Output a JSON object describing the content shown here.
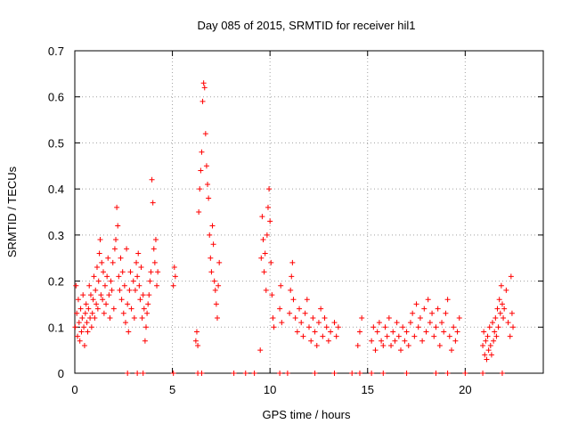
{
  "chart_data": {
    "type": "scatter",
    "title": "Day 085 of 2015, SRMTID for receiver hil1",
    "xlabel": "GPS time / hours",
    "ylabel": "SRMTID / TECUs",
    "xlim": [
      0,
      24
    ],
    "ylim": [
      0,
      0.7
    ],
    "x_ticks": [
      0,
      5,
      10,
      15,
      20
    ],
    "x_tick_labels": [
      "0",
      "5",
      "10",
      "15",
      "20"
    ],
    "y_ticks": [
      0,
      0.1,
      0.2,
      0.3,
      0.4,
      0.5,
      0.6,
      0.7
    ],
    "y_tick_labels": [
      "0",
      "0.1",
      "0.2",
      "0.3",
      "0.4",
      "0.5",
      "0.6",
      "0.7"
    ],
    "grid": true,
    "marker": "+",
    "color": "#ff0000",
    "series": [
      {
        "name": "SRMTID",
        "points": [
          [
            0.02,
            0.1
          ],
          [
            0.06,
            0.19
          ],
          [
            0.1,
            0.13
          ],
          [
            0.14,
            0.08
          ],
          [
            0.18,
            0.16
          ],
          [
            0.22,
            0.11
          ],
          [
            0.26,
            0.07
          ],
          [
            0.3,
            0.14
          ],
          [
            0.34,
            0.09
          ],
          [
            0.38,
            0.12
          ],
          [
            0.42,
            0.17
          ],
          [
            0.46,
            0.1
          ],
          [
            0.5,
            0.06
          ],
          [
            0.54,
            0.13
          ],
          [
            0.58,
            0.15
          ],
          [
            0.62,
            0.11
          ],
          [
            0.66,
            0.09
          ],
          [
            0.7,
            0.14
          ],
          [
            0.74,
            0.19
          ],
          [
            0.78,
            0.12
          ],
          [
            0.82,
            0.17
          ],
          [
            0.86,
            0.1
          ],
          [
            0.9,
            0.13
          ],
          [
            0.94,
            0.16
          ],
          [
            0.98,
            0.21
          ],
          [
            1.02,
            0.12
          ],
          [
            1.06,
            0.18
          ],
          [
            1.1,
            0.15
          ],
          [
            1.14,
            0.23
          ],
          [
            1.18,
            0.14
          ],
          [
            1.22,
            0.2
          ],
          [
            1.26,
            0.26
          ],
          [
            1.3,
            0.29
          ],
          [
            1.34,
            0.17
          ],
          [
            1.38,
            0.24
          ],
          [
            1.42,
            0.16
          ],
          [
            1.46,
            0.22
          ],
          [
            1.5,
            0.13
          ],
          [
            1.55,
            0.19
          ],
          [
            1.6,
            0.15
          ],
          [
            1.65,
            0.21
          ],
          [
            1.7,
            0.25
          ],
          [
            1.75,
            0.17
          ],
          [
            1.8,
            0.12
          ],
          [
            1.85,
            0.2
          ],
          [
            1.9,
            0.18
          ],
          [
            1.95,
            0.24
          ],
          [
            2.0,
            0.14
          ],
          [
            2.05,
            0.27
          ],
          [
            2.1,
            0.29
          ],
          [
            2.15,
            0.36
          ],
          [
            2.2,
            0.32
          ],
          [
            2.25,
            0.21
          ],
          [
            2.3,
            0.18
          ],
          [
            2.35,
            0.25
          ],
          [
            2.4,
            0.16
          ],
          [
            2.45,
            0.22
          ],
          [
            2.5,
            0.13
          ],
          [
            2.55,
            0.19
          ],
          [
            2.6,
            0.11
          ],
          [
            2.65,
            0.27
          ],
          [
            2.7,
            0.15
          ],
          [
            2.75,
            0.09
          ],
          [
            2.8,
            0.18
          ],
          [
            2.85,
            0.22
          ],
          [
            2.9,
            0.14
          ],
          [
            3.0,
            0.2
          ],
          [
            3.05,
            0.12
          ],
          [
            3.1,
            0.18
          ],
          [
            3.15,
            0.24
          ],
          [
            3.2,
            0.21
          ],
          [
            3.25,
            0.26
          ],
          [
            3.3,
            0.19
          ],
          [
            3.35,
            0.16
          ],
          [
            3.4,
            0.23
          ],
          [
            3.45,
            0.12
          ],
          [
            3.5,
            0.17
          ],
          [
            3.55,
            0.14
          ],
          [
            3.6,
            0.07
          ],
          [
            3.65,
            0.1
          ],
          [
            3.7,
            0.13
          ],
          [
            3.75,
            0.15
          ],
          [
            3.8,
            0.17
          ],
          [
            3.85,
            0.2
          ],
          [
            3.9,
            0.22
          ],
          [
            3.95,
            0.42
          ],
          [
            4.0,
            0.37
          ],
          [
            4.05,
            0.27
          ],
          [
            4.1,
            0.24
          ],
          [
            4.15,
            0.29
          ],
          [
            4.2,
            0.19
          ],
          [
            4.25,
            0.22
          ],
          [
            5.05,
            0.19
          ],
          [
            5.1,
            0.23
          ],
          [
            5.15,
            0.21
          ],
          [
            6.2,
            0.07
          ],
          [
            6.25,
            0.09
          ],
          [
            6.3,
            0.06
          ],
          [
            6.35,
            0.35
          ],
          [
            6.4,
            0.4
          ],
          [
            6.45,
            0.44
          ],
          [
            6.5,
            0.48
          ],
          [
            6.55,
            0.59
          ],
          [
            6.6,
            0.63
          ],
          [
            6.65,
            0.62
          ],
          [
            6.7,
            0.52
          ],
          [
            6.75,
            0.45
          ],
          [
            6.8,
            0.41
          ],
          [
            6.85,
            0.38
          ],
          [
            6.9,
            0.3
          ],
          [
            6.95,
            0.25
          ],
          [
            7.0,
            0.22
          ],
          [
            7.05,
            0.32
          ],
          [
            7.1,
            0.28
          ],
          [
            7.15,
            0.2
          ],
          [
            7.2,
            0.18
          ],
          [
            7.25,
            0.15
          ],
          [
            7.3,
            0.12
          ],
          [
            7.35,
            0.19
          ],
          [
            7.4,
            0.24
          ],
          [
            9.5,
            0.05
          ],
          [
            9.55,
            0.25
          ],
          [
            9.6,
            0.34
          ],
          [
            9.65,
            0.29
          ],
          [
            9.7,
            0.22
          ],
          [
            9.75,
            0.26
          ],
          [
            9.8,
            0.18
          ],
          [
            9.85,
            0.3
          ],
          [
            9.9,
            0.36
          ],
          [
            9.95,
            0.4
          ],
          [
            10.0,
            0.33
          ],
          [
            10.05,
            0.24
          ],
          [
            10.1,
            0.17
          ],
          [
            10.15,
            0.12
          ],
          [
            10.2,
            0.1
          ],
          [
            10.5,
            0.14
          ],
          [
            10.55,
            0.19
          ],
          [
            10.6,
            0.11
          ],
          [
            11.0,
            0.13
          ],
          [
            11.05,
            0.18
          ],
          [
            11.1,
            0.21
          ],
          [
            11.15,
            0.24
          ],
          [
            11.2,
            0.16
          ],
          [
            11.3,
            0.12
          ],
          [
            11.4,
            0.09
          ],
          [
            11.5,
            0.14
          ],
          [
            11.6,
            0.11
          ],
          [
            11.7,
            0.08
          ],
          [
            11.8,
            0.13
          ],
          [
            11.9,
            0.16
          ],
          [
            12.0,
            0.1
          ],
          [
            12.1,
            0.07
          ],
          [
            12.2,
            0.12
          ],
          [
            12.3,
            0.09
          ],
          [
            12.4,
            0.06
          ],
          [
            12.5,
            0.11
          ],
          [
            12.6,
            0.14
          ],
          [
            12.7,
            0.08
          ],
          [
            12.8,
            0.12
          ],
          [
            12.9,
            0.1
          ],
          [
            13.0,
            0.07
          ],
          [
            13.1,
            0.09
          ],
          [
            13.3,
            0.11
          ],
          [
            13.4,
            0.08
          ],
          [
            13.5,
            0.1
          ],
          [
            14.5,
            0.06
          ],
          [
            14.6,
            0.09
          ],
          [
            14.7,
            0.12
          ],
          [
            15.2,
            0.07
          ],
          [
            15.3,
            0.1
          ],
          [
            15.4,
            0.05
          ],
          [
            15.5,
            0.09
          ],
          [
            15.6,
            0.11
          ],
          [
            15.7,
            0.07
          ],
          [
            15.8,
            0.06
          ],
          [
            15.9,
            0.1
          ],
          [
            16.0,
            0.08
          ],
          [
            16.1,
            0.12
          ],
          [
            16.2,
            0.06
          ],
          [
            16.3,
            0.09
          ],
          [
            16.4,
            0.07
          ],
          [
            16.5,
            0.11
          ],
          [
            16.6,
            0.08
          ],
          [
            16.7,
            0.05
          ],
          [
            16.8,
            0.1
          ],
          [
            16.9,
            0.07
          ],
          [
            17.0,
            0.09
          ],
          [
            17.1,
            0.06
          ],
          [
            17.2,
            0.11
          ],
          [
            17.3,
            0.13
          ],
          [
            17.4,
            0.08
          ],
          [
            17.5,
            0.15
          ],
          [
            17.6,
            0.1
          ],
          [
            17.7,
            0.12
          ],
          [
            17.8,
            0.07
          ],
          [
            17.9,
            0.14
          ],
          [
            18.0,
            0.09
          ],
          [
            18.1,
            0.16
          ],
          [
            18.2,
            0.11
          ],
          [
            18.3,
            0.13
          ],
          [
            18.4,
            0.08
          ],
          [
            18.5,
            0.1
          ],
          [
            18.6,
            0.14
          ],
          [
            18.7,
            0.06
          ],
          [
            18.8,
            0.11
          ],
          [
            18.9,
            0.09
          ],
          [
            19.0,
            0.13
          ],
          [
            19.1,
            0.16
          ],
          [
            19.2,
            0.08
          ],
          [
            19.3,
            0.05
          ],
          [
            19.4,
            0.1
          ],
          [
            19.5,
            0.07
          ],
          [
            19.6,
            0.09
          ],
          [
            19.7,
            0.12
          ],
          [
            20.9,
            0.06
          ],
          [
            20.95,
            0.09
          ],
          [
            21.0,
            0.04
          ],
          [
            21.05,
            0.07
          ],
          [
            21.1,
            0.03
          ],
          [
            21.15,
            0.08
          ],
          [
            21.2,
            0.05
          ],
          [
            21.25,
            0.1
          ],
          [
            21.3,
            0.06
          ],
          [
            21.35,
            0.04
          ],
          [
            21.4,
            0.11
          ],
          [
            21.45,
            0.07
          ],
          [
            21.5,
            0.09
          ],
          [
            21.55,
            0.12
          ],
          [
            21.6,
            0.08
          ],
          [
            21.65,
            0.14
          ],
          [
            21.7,
            0.1
          ],
          [
            21.75,
            0.16
          ],
          [
            21.8,
            0.13
          ],
          [
            21.85,
            0.19
          ],
          [
            21.9,
            0.15
          ],
          [
            21.95,
            0.12
          ],
          [
            22.0,
            0.14
          ],
          [
            22.1,
            0.18
          ],
          [
            22.2,
            0.11
          ],
          [
            22.3,
            0.08
          ],
          [
            22.35,
            0.21
          ],
          [
            22.4,
            0.13
          ],
          [
            22.45,
            0.1
          ],
          [
            2.7,
            0.0
          ],
          [
            3.2,
            0.0
          ],
          [
            3.5,
            0.0
          ],
          [
            5.05,
            0.0
          ],
          [
            6.3,
            0.0
          ],
          [
            6.5,
            0.0
          ],
          [
            8.15,
            0.0
          ],
          [
            8.75,
            0.0
          ],
          [
            9.2,
            0.0
          ],
          [
            10.5,
            0.0
          ],
          [
            10.9,
            0.0
          ],
          [
            12.3,
            0.0
          ],
          [
            13.3,
            0.0
          ],
          [
            14.2,
            0.0
          ],
          [
            14.6,
            0.0
          ],
          [
            15.2,
            0.0
          ],
          [
            15.8,
            0.0
          ],
          [
            17.0,
            0.0
          ],
          [
            18.5,
            0.0
          ],
          [
            19.1,
            0.0
          ],
          [
            20.0,
            0.0
          ],
          [
            20.9,
            0.0
          ],
          [
            21.9,
            0.0
          ]
        ]
      }
    ]
  }
}
